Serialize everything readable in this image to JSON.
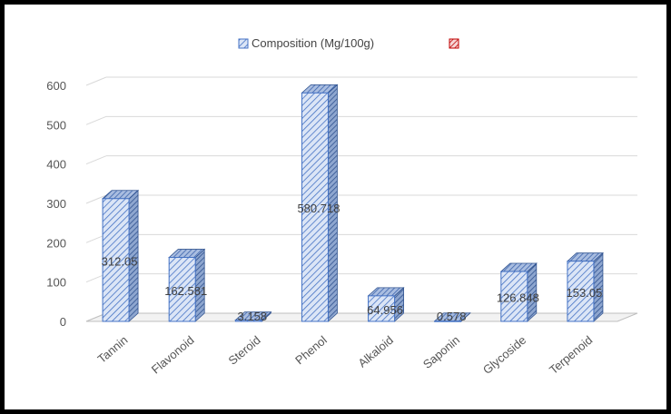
{
  "chart_data": {
    "type": "bar",
    "style": "3d-column",
    "categories": [
      "Tannin",
      "Flavonoid",
      "Steroid",
      "Phenol",
      "Alkaloid",
      "Saponin",
      "Glycoside",
      "Terpenoid"
    ],
    "series": [
      {
        "name": "Composition (Mg/100g)",
        "values": [
          312.05,
          162.581,
          3.158,
          580.718,
          64.956,
          0.578,
          126.848,
          153.05
        ],
        "color": "#4472c4",
        "pattern": "diagonal-hatch"
      }
    ],
    "data_labels": [
      "312.05",
      "162.581",
      "3.158",
      "580.718",
      "64.956",
      "0.578",
      "126.848",
      "153.05"
    ],
    "legend": {
      "position": "top",
      "entries": [
        "Composition (Mg/100g)",
        ""
      ],
      "marker_colors": [
        "#4472c4",
        "#c00000"
      ]
    },
    "yticks": [
      "0",
      "100",
      "200",
      "300",
      "400",
      "500",
      "600"
    ],
    "ylim": [
      0,
      600
    ],
    "grid": true,
    "title": "",
    "xlabel": "",
    "ylabel": ""
  }
}
